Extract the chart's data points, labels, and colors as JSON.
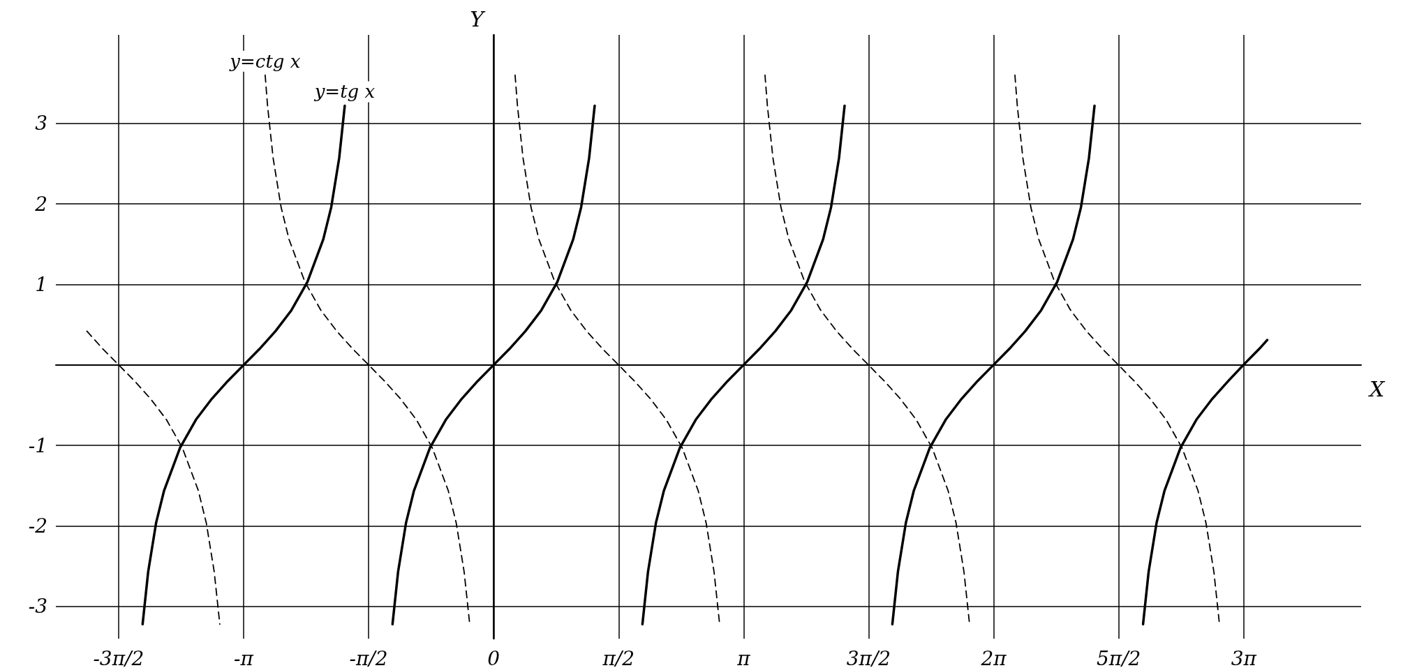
{
  "chart_data": {
    "type": "line",
    "xlabel": "X",
    "ylabel": "Y",
    "grid": true,
    "legend": false,
    "marker": "none",
    "xlim": [
      -5.5,
      10.9
    ],
    "ylim": [
      -3.4,
      4.1
    ],
    "xticks": [
      {
        "value": -4.712,
        "label": "-3π/2"
      },
      {
        "value": -3.142,
        "label": "-π"
      },
      {
        "value": -1.571,
        "label": "-π/2"
      },
      0,
      {
        "value": 1.571,
        "label": "π/2"
      },
      {
        "value": 3.142,
        "label": "π"
      },
      {
        "value": 4.712,
        "label": "3π/2"
      },
      {
        "value": 6.283,
        "label": "2π"
      },
      {
        "value": 7.854,
        "label": "5π/2"
      },
      {
        "value": 9.425,
        "label": "3π"
      }
    ],
    "yticks": [
      -3,
      -2,
      -1,
      1,
      2,
      3
    ],
    "series": [
      {
        "name": "y=tg x",
        "color": "#000000",
        "line_style": "solid",
        "x": [
          -4.41,
          -4.34,
          -4.24,
          -4.14,
          -3.94,
          -3.74,
          -3.54,
          -3.34,
          -3.14,
          -2.94,
          -2.74,
          -2.54,
          -2.34,
          -2.14,
          -2.04,
          -1.94,
          -1.87,
          -1.57,
          -1.27,
          -1.2,
          -1.1,
          -1.0,
          -0.8,
          -0.6,
          -0.4,
          -0.2,
          0,
          0.2,
          0.4,
          0.6,
          0.8,
          1.0,
          1.1,
          1.2,
          1.27,
          1.57,
          1.87,
          1.94,
          2.04,
          2.14,
          2.34,
          2.54,
          2.74,
          2.94,
          3.14,
          3.34,
          3.54,
          3.74,
          3.94,
          4.14,
          4.24,
          4.34,
          4.41,
          4.71,
          5.01,
          5.08,
          5.18,
          5.28,
          5.48,
          5.68,
          5.88,
          6.08,
          6.28,
          6.48,
          6.68,
          6.88,
          7.08,
          7.28,
          7.38,
          7.48,
          7.55,
          7.85,
          8.16,
          8.23,
          8.33,
          8.43,
          8.63,
          8.83,
          9.03,
          9.23,
          9.42,
          9.62,
          9.72
        ],
        "values": [
          -3.22,
          -2.57,
          -1.96,
          -1.56,
          -1.03,
          -0.68,
          -0.42,
          -0.2,
          0,
          0.2,
          0.42,
          0.68,
          1.03,
          1.56,
          1.96,
          2.57,
          3.22,
          null,
          -3.22,
          -2.57,
          -1.96,
          -1.56,
          -1.03,
          -0.68,
          -0.42,
          -0.2,
          0,
          0.2,
          0.42,
          0.68,
          1.03,
          1.56,
          1.96,
          2.57,
          3.22,
          null,
          -3.22,
          -2.57,
          -1.96,
          -1.56,
          -1.03,
          -0.68,
          -0.42,
          -0.2,
          0,
          0.2,
          0.42,
          0.68,
          1.03,
          1.56,
          1.96,
          2.57,
          3.22,
          null,
          -3.22,
          -2.57,
          -1.96,
          -1.56,
          -1.03,
          -0.68,
          -0.42,
          -0.2,
          0,
          0.2,
          0.42,
          0.68,
          1.03,
          1.56,
          1.96,
          2.57,
          3.22,
          null,
          -3.22,
          -2.57,
          -1.96,
          -1.56,
          -1.03,
          -0.68,
          -0.42,
          -0.2,
          0,
          0.2,
          0.31
        ]
      },
      {
        "name": "y=ctg x",
        "color": "#000000",
        "line_style": "dashed",
        "x": [
          -5.11,
          -4.91,
          -4.71,
          -4.51,
          -4.31,
          -4.11,
          -3.91,
          -3.71,
          -3.61,
          -3.51,
          -3.44,
          -3.14,
          -2.87,
          -2.84,
          -2.77,
          -2.67,
          -2.57,
          -2.37,
          -2.17,
          -1.97,
          -1.77,
          -1.57,
          -1.37,
          -1.17,
          -0.97,
          -0.77,
          -0.57,
          -0.47,
          -0.37,
          -0.3,
          0,
          0.27,
          0.3,
          0.37,
          0.47,
          0.57,
          0.77,
          0.97,
          1.17,
          1.37,
          1.57,
          1.77,
          1.97,
          2.17,
          2.37,
          2.57,
          2.67,
          2.77,
          2.84,
          3.14,
          3.41,
          3.44,
          3.51,
          3.61,
          3.71,
          3.91,
          4.11,
          4.31,
          4.51,
          4.71,
          4.91,
          5.11,
          5.31,
          5.51,
          5.71,
          5.81,
          5.91,
          5.98,
          6.28,
          6.55,
          6.58,
          6.65,
          6.75,
          6.85,
          7.05,
          7.25,
          7.45,
          7.65,
          7.85,
          8.05,
          8.25,
          8.45,
          8.65,
          8.85,
          8.95,
          9.05,
          9.12
        ],
        "values": [
          0.42,
          0.2,
          0,
          -0.2,
          -0.42,
          -0.68,
          -1.03,
          -1.56,
          -1.96,
          -2.57,
          -3.22,
          null,
          3.6,
          3.22,
          2.57,
          1.96,
          1.56,
          1.03,
          0.68,
          0.42,
          0.2,
          0,
          -0.2,
          -0.42,
          -0.68,
          -1.03,
          -1.56,
          -1.96,
          -2.57,
          -3.22,
          null,
          3.6,
          3.22,
          2.57,
          1.96,
          1.56,
          1.03,
          0.68,
          0.42,
          0.2,
          0,
          -0.2,
          -0.42,
          -0.68,
          -1.03,
          -1.56,
          -1.96,
          -2.57,
          -3.22,
          null,
          3.6,
          3.22,
          2.57,
          1.96,
          1.56,
          1.03,
          0.68,
          0.42,
          0.2,
          0,
          -0.2,
          -0.42,
          -0.68,
          -1.03,
          -1.56,
          -1.96,
          -2.57,
          -3.22,
          null,
          3.6,
          3.22,
          2.57,
          1.96,
          1.56,
          1.03,
          0.68,
          0.42,
          0.2,
          0,
          -0.2,
          -0.42,
          -0.68,
          -1.03,
          -1.56,
          -1.96,
          -2.57,
          -3.22
        ]
      }
    ]
  }
}
